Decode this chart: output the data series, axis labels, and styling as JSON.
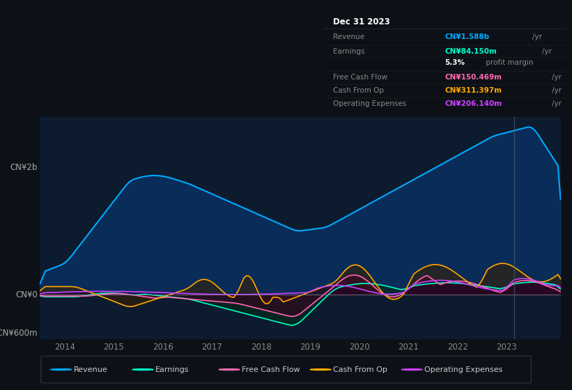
{
  "bg_color": "#0d1117",
  "plot_bg_color": "#0d1b2e",
  "ylabel_2b": "CN¥2b",
  "ylabel_0": "CN¥0",
  "ylabel_neg600": "-CN¥600m",
  "xticks": [
    2014,
    2015,
    2016,
    2017,
    2018,
    2019,
    2020,
    2021,
    2022,
    2023
  ],
  "legend_items": [
    {
      "label": "Revenue",
      "color": "#00aaff"
    },
    {
      "label": "Earnings",
      "color": "#00ffcc"
    },
    {
      "label": "Free Cash Flow",
      "color": "#ff69b4"
    },
    {
      "label": "Cash From Op",
      "color": "#ffaa00"
    },
    {
      "label": "Operating Expenses",
      "color": "#cc44ff"
    }
  ],
  "info_box": {
    "date": "Dec 31 2023",
    "rows": [
      {
        "label": "Revenue",
        "value": "CN¥1.588b",
        "unit": "/yr",
        "value_color": "#00aaff",
        "label_color": "#888888"
      },
      {
        "label": "Earnings",
        "value": "CN¥84.150m",
        "unit": "/yr",
        "value_color": "#00ffcc",
        "label_color": "#888888"
      },
      {
        "label": "",
        "value": "5.3%",
        "unit": " profit margin",
        "value_color": "#ffffff",
        "label_color": "#888888"
      },
      {
        "label": "Free Cash Flow",
        "value": "CN¥150.469m",
        "unit": "/yr",
        "value_color": "#ff69b4",
        "label_color": "#888888"
      },
      {
        "label": "Cash From Op",
        "value": "CN¥311.397m",
        "unit": "/yr",
        "value_color": "#ffaa00",
        "label_color": "#888888"
      },
      {
        "label": "Operating Expenses",
        "value": "CN¥206.140m",
        "unit": "/yr",
        "value_color": "#cc44ff",
        "label_color": "#888888"
      }
    ]
  },
  "revenue_color": "#00aaff",
  "revenue_fill": "#0a3060",
  "earnings_color": "#00ffcc",
  "earnings_fill": "#002a1a",
  "fcf_color": "#ff69b4",
  "fcf_fill": "#3d0020",
  "cashop_color": "#ffaa00",
  "cashop_fill": "#3a2000",
  "opex_color": "#cc44ff",
  "opex_fill": "#1e0030",
  "ylim_min": -700000000,
  "ylim_max": 2800000000,
  "xlim_min": 2013.5,
  "xlim_max": 2024.1
}
